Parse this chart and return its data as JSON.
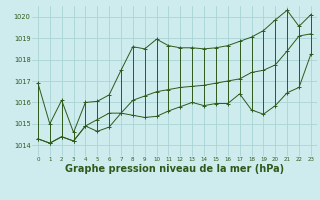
{
  "title": "Graphe pression niveau de la mer (hPa)",
  "hours": [
    0,
    1,
    2,
    3,
    4,
    5,
    6,
    7,
    8,
    9,
    10,
    11,
    12,
    13,
    14,
    15,
    16,
    17,
    18,
    19,
    20,
    21,
    22,
    23
  ],
  "pressure_mean": [
    1014.3,
    1014.1,
    1014.4,
    1014.2,
    1014.9,
    1015.2,
    1015.5,
    1015.5,
    1016.1,
    1016.3,
    1016.5,
    1016.6,
    1016.7,
    1016.75,
    1016.8,
    1016.9,
    1017.0,
    1017.1,
    1017.4,
    1017.5,
    1017.75,
    1018.4,
    1019.1,
    1019.2
  ],
  "pressure_max": [
    1016.9,
    1015.0,
    1016.1,
    1014.6,
    1016.0,
    1016.05,
    1016.35,
    1017.5,
    1018.6,
    1018.5,
    1018.95,
    1018.65,
    1018.55,
    1018.55,
    1018.5,
    1018.55,
    1018.65,
    1018.85,
    1019.05,
    1019.35,
    1019.85,
    1020.3,
    1019.55,
    1020.1
  ],
  "pressure_min": [
    1014.3,
    1014.1,
    1014.4,
    1014.2,
    1014.9,
    1014.65,
    1014.85,
    1015.5,
    1015.4,
    1015.3,
    1015.35,
    1015.6,
    1015.8,
    1016.0,
    1015.85,
    1015.95,
    1015.95,
    1016.4,
    1015.65,
    1015.45,
    1015.85,
    1016.45,
    1016.7,
    1018.25
  ],
  "color_line": "#2d5a1b",
  "bg_color": "#ceeced",
  "grid_color": "#a8d4d4",
  "ylim": [
    1013.5,
    1020.5
  ],
  "xlim": [
    -0.5,
    23.5
  ],
  "figwidth": 3.2,
  "figheight": 2.0,
  "dpi": 100
}
